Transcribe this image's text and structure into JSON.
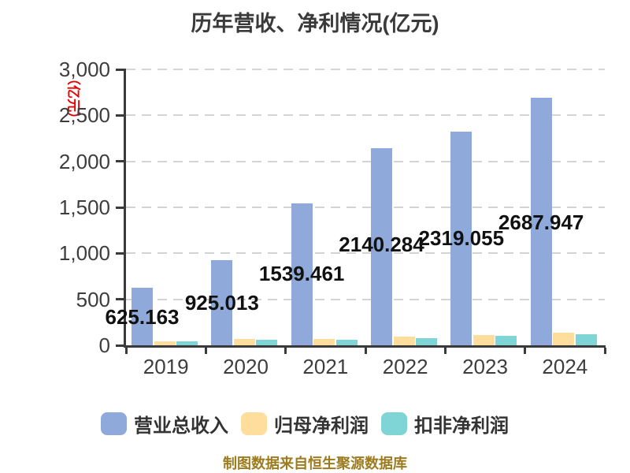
{
  "title": "历年营收、净利情况(亿元)",
  "y_axis_unit": "（亿元）",
  "footer": "制图数据来自恒生聚源数据库",
  "colors": {
    "background": "#ffffff",
    "axis": "#3a3a3a",
    "gridline": "#d4d4d4",
    "title_text": "#3a3a3a",
    "tick_label_text": "#3d3d3d",
    "value_label_text": "#111111",
    "unit_text": "#e60000",
    "footer_text": "#9c7c1e",
    "revenue_bar": "#8fa9da",
    "net_profit_bar": "#ffdd9c",
    "non_gaap_profit_bar": "#7fd4d6"
  },
  "chart_data": {
    "type": "bar",
    "title": "历年营收、净利情况(亿元)",
    "categories": [
      "2019",
      "2020",
      "2021",
      "2022",
      "2023",
      "2024"
    ],
    "series": [
      {
        "key": "total-revenue",
        "name": "营业总收入",
        "color": "#8fa9da",
        "values": [
          625.163,
          925.013,
          1539.461,
          2140.284,
          2319.055,
          2687.947
        ],
        "value_labels": [
          "625.163",
          "925.013",
          "1539.461",
          "2140.284",
          "2319.055",
          "2687.947"
        ],
        "labels_shown": true
      },
      {
        "key": "net-profit-attributable",
        "name": "归母净利润",
        "color": "#ffdd9c",
        "values": [
          47,
          72,
          71,
          92,
          110,
          134
        ],
        "estimated_from_pixels": true,
        "labels_shown": false
      },
      {
        "key": "non-gaap-net-profit",
        "name": "扣非净利润",
        "color": "#7fd4d6",
        "values": [
          43,
          63,
          60,
          81,
          100,
          116
        ],
        "estimated_from_pixels": true,
        "labels_shown": false
      }
    ],
    "ylim": [
      0,
      3000
    ],
    "y_tick_values": [
      0,
      500,
      1000,
      1500,
      2000,
      2500,
      3000
    ],
    "y_tick_labels": [
      "0",
      "500",
      "1,000",
      "1,500",
      "2,000",
      "2,500",
      "3,000"
    ],
    "ylabel": "（亿元）",
    "xlabel": "",
    "grid": "horizontal dashed",
    "legend_position": "bottom",
    "value_label_y_centers": [
      402,
      384,
      347,
      310,
      302,
      282
    ]
  },
  "legend": {
    "items": [
      {
        "label": "营业总收入",
        "color": "#8fa9da"
      },
      {
        "label": "归母净利润",
        "color": "#ffdd9c"
      },
      {
        "label": "扣非净利润",
        "color": "#7fd4d6"
      }
    ]
  }
}
